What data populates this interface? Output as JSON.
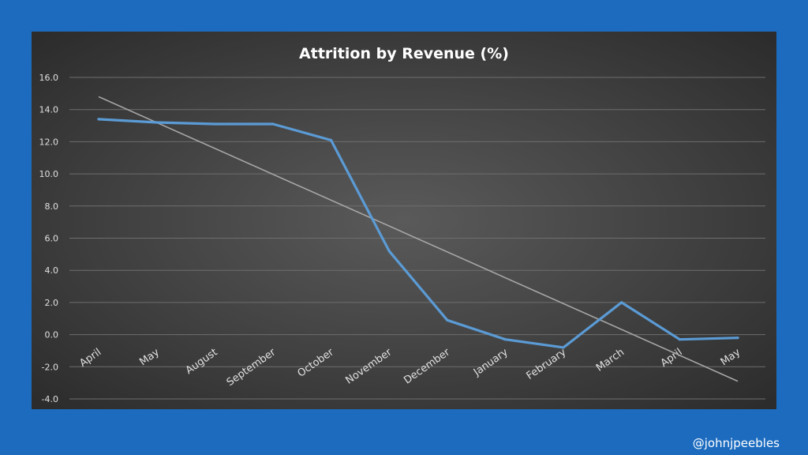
{
  "watermark": "@johnjpeebles",
  "chart_data": {
    "type": "line",
    "title": "Attrition by Revenue (%)",
    "xlabel": "",
    "ylabel": "",
    "categories": [
      "April",
      "May",
      "August",
      "September",
      "October",
      "November",
      "December",
      "January",
      "February",
      "March",
      "April",
      "May"
    ],
    "series": [
      {
        "values": [
          13.4,
          13.2,
          13.1,
          13.1,
          12.1,
          5.2,
          0.9,
          -0.3,
          -0.8,
          2.0,
          -0.3,
          -0.2
        ],
        "color": "#5b9bd5"
      }
    ],
    "trendline": {
      "type": "linear",
      "start": 14.8,
      "end": -2.9,
      "color": "#a6a6a6"
    },
    "ylim": [
      -4,
      16
    ],
    "yticks": [
      "16.0",
      "14.0",
      "12.0",
      "10.0",
      "8.0",
      "6.0",
      "4.0",
      "2.0",
      "0.0",
      "-2.0",
      "-4.0"
    ],
    "grid": true,
    "legend": "none"
  }
}
